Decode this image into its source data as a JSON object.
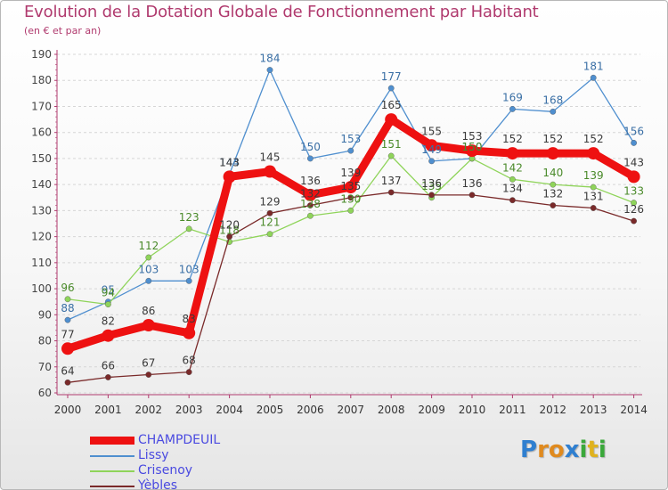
{
  "title": "Evolution de la Dotation Globale de Fonctionnement par Habitant",
  "subtitle": "(en € et par an)",
  "logo": {
    "text": "Proxiti",
    "letters": [
      {
        "ch": "P",
        "color": "#2f7fd0"
      },
      {
        "ch": "r",
        "color": "#e08a1e"
      },
      {
        "ch": "o",
        "color": "#e08a1e"
      },
      {
        "ch": "x",
        "color": "#2f7fd0"
      },
      {
        "ch": "i",
        "color": "#3aa83a"
      },
      {
        "ch": "t",
        "color": "#e0b21e"
      },
      {
        "ch": "i",
        "color": "#3aa83a"
      }
    ]
  },
  "chart_data": {
    "type": "line",
    "title": "Evolution de la Dotation Globale de Fonctionnement par Habitant",
    "ylabel": "(en € et par an)",
    "xlabel": "",
    "ylim": [
      60,
      190
    ],
    "yticks": [
      60,
      70,
      80,
      90,
      100,
      110,
      120,
      130,
      140,
      150,
      160,
      170,
      180,
      190
    ],
    "categories": [
      "2000",
      "2001",
      "2002",
      "2003",
      "2004",
      "2005",
      "2006",
      "2007",
      "2008",
      "2009",
      "2010",
      "2011",
      "2012",
      "2013",
      "2014"
    ],
    "grid": "horizontal dashed",
    "legend_position": "bottom-left",
    "series": [
      {
        "name": "Lissy",
        "color": "#4f8fcf",
        "values": [
          88,
          95,
          103,
          103,
          144,
          184,
          150,
          153,
          177,
          149,
          150,
          169,
          168,
          181,
          156
        ],
        "labels": [
          "88",
          "95",
          "103",
          "103",
          "144",
          "184",
          "150",
          "153",
          "177",
          "149",
          "150",
          "169",
          "168",
          "181",
          "156"
        ]
      },
      {
        "name": "Crisenoy",
        "color": "#8fd45a",
        "values": [
          96,
          94,
          112,
          123,
          118,
          121,
          128,
          130,
          151,
          135,
          150,
          142,
          140,
          139,
          133
        ],
        "labels": [
          "96",
          "94",
          "112",
          "123",
          "118",
          "121",
          "128",
          "130",
          "151",
          "135",
          "150",
          "142",
          "140",
          "139",
          "133"
        ]
      },
      {
        "name": "Yèbles",
        "color": "#7a2a2a",
        "values": [
          64,
          66,
          67,
          68,
          120,
          129,
          132,
          135,
          137,
          136,
          136,
          134,
          132,
          131,
          126
        ],
        "labels": [
          "64",
          "66",
          "67",
          "68",
          "120",
          "129",
          "132",
          "135",
          "137",
          "136",
          "136",
          "134",
          "132",
          "131",
          "126"
        ]
      },
      {
        "name": "CHAMPDEUIL",
        "color": "#ee1111",
        "values": [
          77,
          82,
          86,
          83,
          143,
          145,
          136,
          139,
          165,
          155,
          153,
          152,
          152,
          152,
          143
        ],
        "labels": [
          "77",
          "82",
          "86",
          "83",
          "143",
          "145",
          "136",
          "139",
          "165",
          "155",
          "153",
          "152",
          "152",
          "152",
          "143"
        ]
      }
    ],
    "legend": [
      "CHAMPDEUIL",
      "Lissy",
      "Crisenoy",
      "Yèbles"
    ]
  }
}
